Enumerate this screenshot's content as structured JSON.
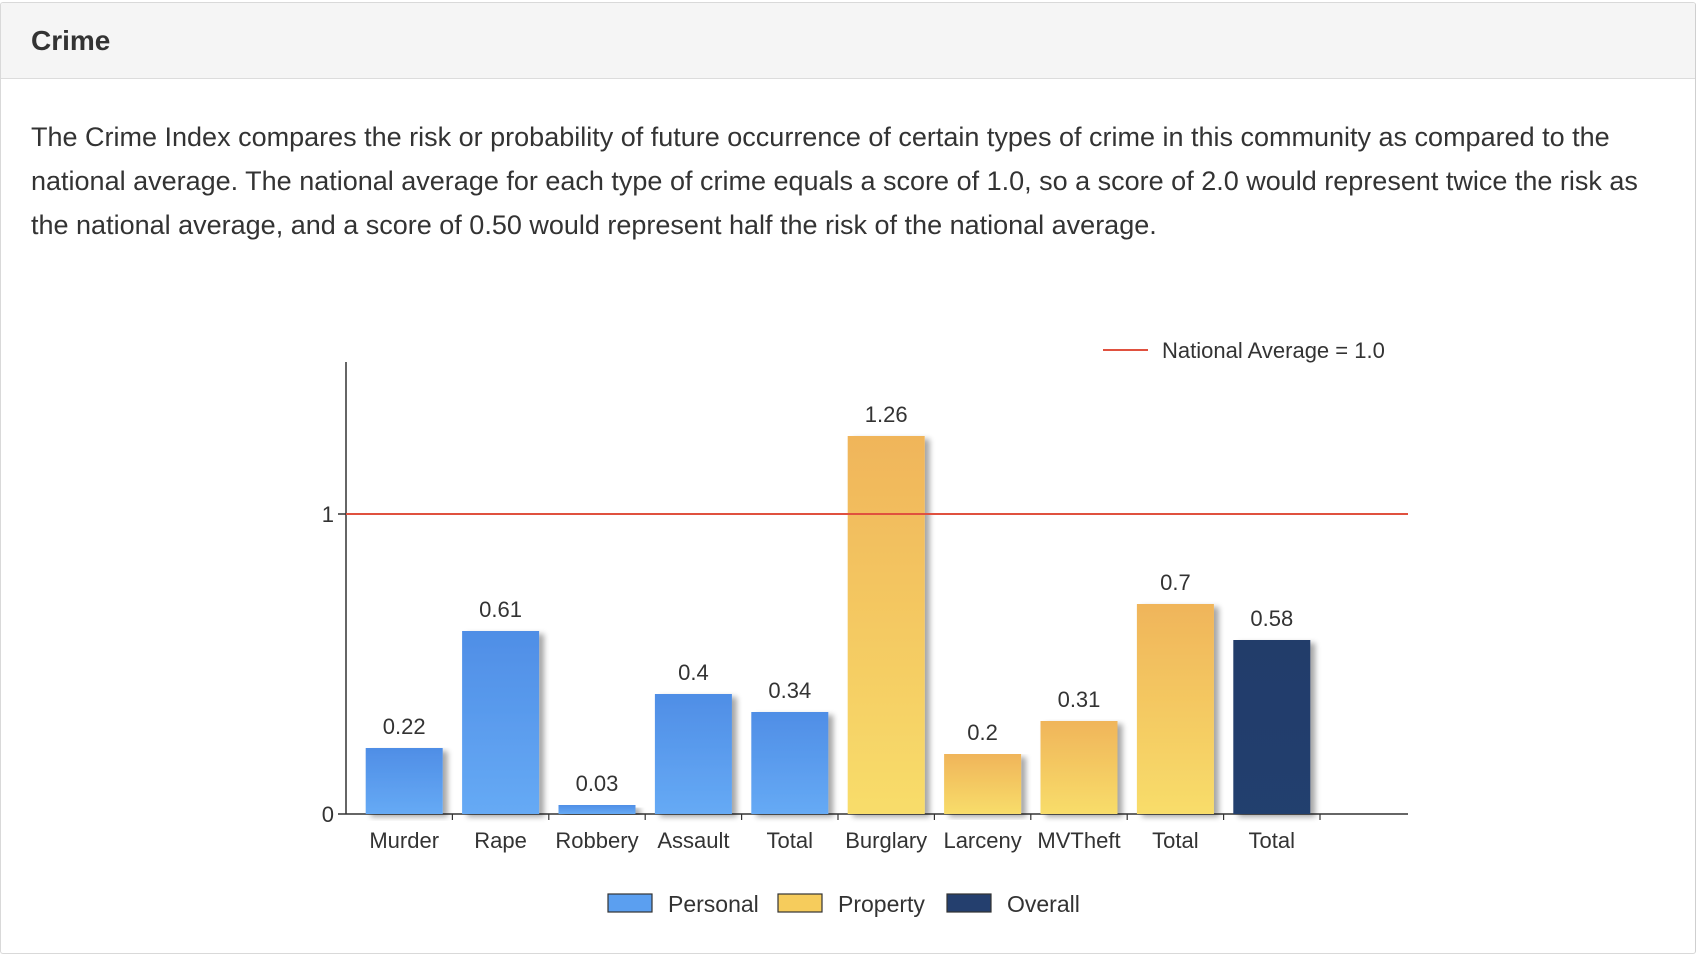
{
  "panel": {
    "title": "Crime",
    "description": "The Crime Index compares the risk or probability of future occurrence of certain types of crime in this community as compared to the national average. The national average for each type of crime equals a score of 1.0, so a score of 2.0 would represent twice the risk as the national average, and a score of 0.50 would represent half the risk of the national average."
  },
  "chart_data": {
    "type": "bar",
    "categories": [
      "Murder",
      "Rape",
      "Robbery",
      "Assault",
      "Total",
      "Burglary",
      "Larceny",
      "MVTheft",
      "Total",
      "Total"
    ],
    "values": [
      0.22,
      0.61,
      0.03,
      0.4,
      0.34,
      1.26,
      0.2,
      0.31,
      0.7,
      0.58
    ],
    "value_labels": [
      "0.22",
      "0.61",
      "0.03",
      "0.4",
      "0.34",
      "1.26",
      "0.2",
      "0.31",
      "0.7",
      "0.58"
    ],
    "groups": [
      "Personal",
      "Personal",
      "Personal",
      "Personal",
      "Personal",
      "Property",
      "Property",
      "Property",
      "Property",
      "Overall"
    ],
    "legend": [
      {
        "name": "Personal",
        "color": "#5b9ff0"
      },
      {
        "name": "Property",
        "color": "#f6cc5c"
      },
      {
        "name": "Overall",
        "color": "#243f6e"
      }
    ],
    "reference_line": {
      "value": 1.0,
      "label": "National Average = 1.0",
      "color": "#e0513f"
    },
    "yticks": [
      0,
      1
    ],
    "ytick_labels": [
      "0",
      "1"
    ],
    "ylim": [
      0,
      1.4
    ],
    "xlabel": "",
    "ylabel": "",
    "legend_position": "bottom-center",
    "grid": false
  }
}
